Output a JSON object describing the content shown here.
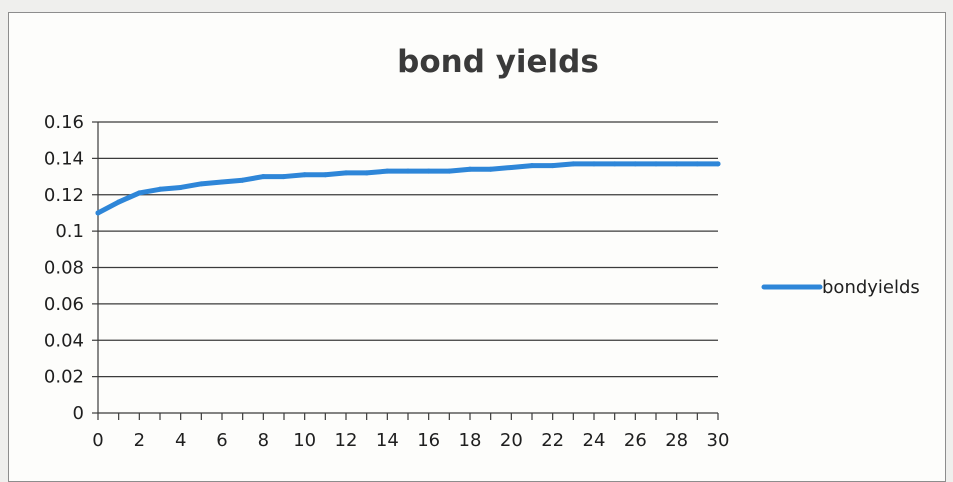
{
  "chart_data": {
    "type": "line",
    "title": "bond yields",
    "xlabel": "",
    "ylabel": "",
    "x": [
      0,
      1,
      2,
      3,
      4,
      5,
      6,
      7,
      8,
      9,
      10,
      11,
      12,
      13,
      14,
      15,
      16,
      17,
      18,
      19,
      20,
      21,
      22,
      23,
      24,
      25,
      26,
      27,
      28,
      29,
      30
    ],
    "series": [
      {
        "name": "bondyields",
        "values": [
          0.11,
          0.116,
          0.121,
          0.123,
          0.124,
          0.126,
          0.127,
          0.128,
          0.13,
          0.13,
          0.131,
          0.131,
          0.132,
          0.132,
          0.133,
          0.133,
          0.133,
          0.133,
          0.134,
          0.134,
          0.135,
          0.136,
          0.136,
          0.137,
          0.137,
          0.137,
          0.137,
          0.137,
          0.137,
          0.137,
          0.137
        ]
      }
    ],
    "xlim": [
      0,
      30
    ],
    "ylim": [
      0,
      0.16
    ],
    "x_ticks": [
      0,
      2,
      4,
      6,
      8,
      10,
      12,
      14,
      16,
      18,
      20,
      22,
      24,
      26,
      28,
      30
    ],
    "y_ticks": [
      "0",
      "0.02",
      "0.04",
      "0.06",
      "0.08",
      "0.1",
      "0.12",
      "0.14",
      "0.16"
    ],
    "grid": "horizontal",
    "legend": "right",
    "colors": {
      "line": "#2e86d8",
      "grid": "#3b3b3b",
      "axis": "#3b3b3b"
    }
  }
}
